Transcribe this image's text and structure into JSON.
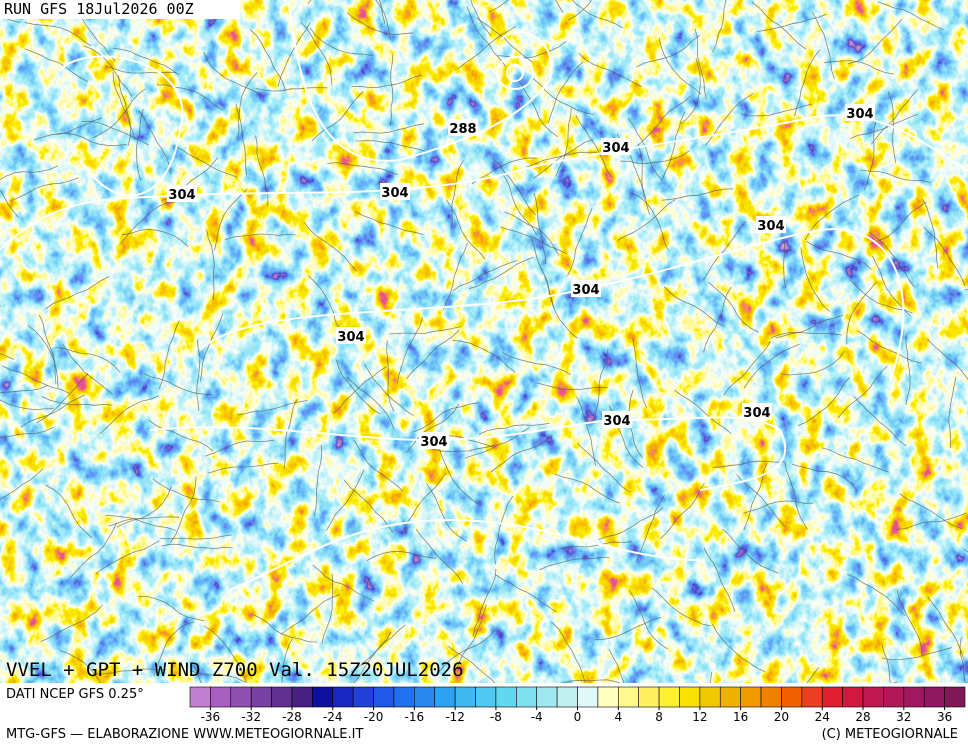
{
  "header": {
    "run": "RUN GFS 18Jul2026 00Z"
  },
  "map": {
    "title": "VVEL + GPT + WIND Z700 Val. 15Z20JUL2026",
    "contour_labels": [
      304,
      288,
      304,
      304,
      304,
      304,
      304,
      304,
      304,
      304,
      304
    ]
  },
  "footer": {
    "source": "DATI NCEP GFS 0.25°",
    "credit_left": "MTG-GFS — ELABORAZIONE WWW.METEOGIORNALE.IT",
    "credit_right": "(C) METEOGIORNALE"
  },
  "colorbar": {
    "lim": [
      -38,
      38
    ],
    "ticks": [
      -36,
      -32,
      -28,
      -24,
      -20,
      -16,
      -12,
      -8,
      -4,
      0,
      4,
      8,
      12,
      16,
      20,
      24,
      28,
      32,
      36
    ],
    "colors": [
      "#c080d0",
      "#a860c0",
      "#9050b0",
      "#7840a0",
      "#603090",
      "#482080",
      "#1010a0",
      "#1828c0",
      "#2040d8",
      "#2058e8",
      "#2070f0",
      "#2888f0",
      "#30a0f0",
      "#40b8f0",
      "#50c8f0",
      "#60d8f0",
      "#80e0f0",
      "#a0e8f0",
      "#c0f0f0",
      "#e0f8f8",
      "#ffffc0",
      "#fff890",
      "#fff060",
      "#fff030",
      "#f8e000",
      "#f0c800",
      "#f0b000",
      "#f09800",
      "#f08000",
      "#f06000",
      "#e84020",
      "#e02030",
      "#d01840",
      "#c01850",
      "#b01858",
      "#a01860",
      "#901860",
      "#801858"
    ]
  }
}
